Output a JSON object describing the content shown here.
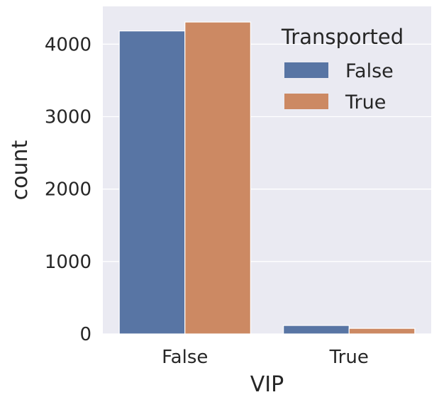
{
  "chart_data": {
    "type": "bar",
    "categories": [
      "False",
      "True"
    ],
    "series": [
      {
        "name": "False",
        "values": [
          4183,
          117
        ],
        "color": "#5875a4"
      },
      {
        "name": "True",
        "values": [
          4306,
          77
        ],
        "color": "#cc8963"
      }
    ],
    "xlabel": "VIP",
    "ylabel": "count",
    "ylim": [
      0,
      4522
    ],
    "yticks": [
      0,
      1000,
      2000,
      3000,
      4000
    ],
    "grid": true,
    "legend": {
      "title": "Transported",
      "placement": "top-right"
    },
    "background_color": "#eaeaf2",
    "grid_color": "#ffffff"
  }
}
